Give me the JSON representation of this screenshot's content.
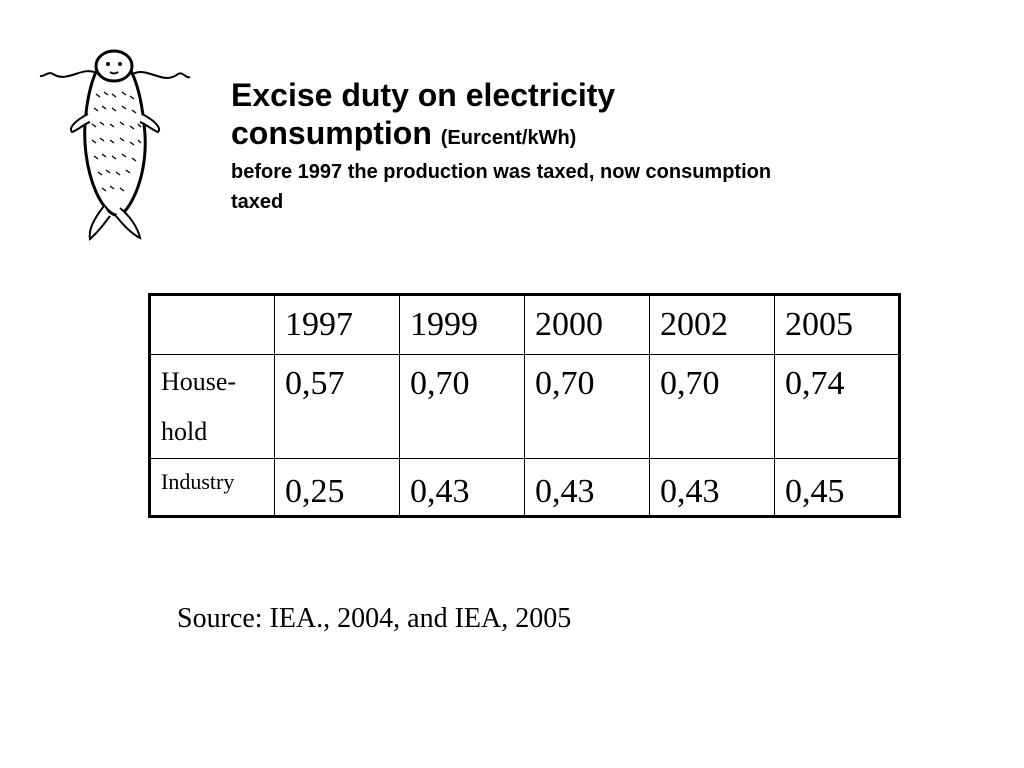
{
  "slide": {
    "title_main": "Excise duty on electricity consumption",
    "title_unit": "(Eurcent/kWh)",
    "subtitle": "before 1997 the production was taxed, now consumption taxed",
    "logo_icon": "seal-logo-icon"
  },
  "table": {
    "corner": "",
    "years": [
      "1997",
      "1999",
      "2000",
      "2002",
      "2005"
    ],
    "rows": [
      {
        "label": "House-hold",
        "values": [
          "0,57",
          "0,70",
          "0,70",
          "0,70",
          "0,74"
        ]
      },
      {
        "label": "Industry",
        "values": [
          "0,25",
          "0,43",
          "0,43",
          "0,43",
          "0,45"
        ]
      }
    ]
  },
  "source": "Source: IEA., 2004, and IEA, 2005"
}
